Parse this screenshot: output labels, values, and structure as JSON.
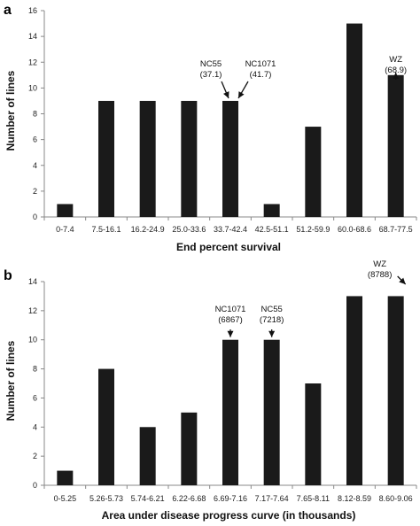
{
  "chart_data": [
    {
      "type": "bar",
      "panel_label": "a",
      "categories": [
        "0-7.4",
        "7.5-16.1",
        "16.2-24.9",
        "25.0-33.6",
        "33.7-42.4",
        "42.5-51.1",
        "51.2-59.9",
        "60.0-68.6",
        "68.7-77.5"
      ],
      "values": [
        1,
        9,
        9,
        9,
        9,
        1,
        7,
        15,
        11
      ],
      "xlabel": "End percent survival",
      "ylabel": "Number  of lines",
      "ylim": [
        0,
        16
      ],
      "yticks": [
        0,
        2,
        4,
        6,
        8,
        10,
        12,
        14,
        16
      ],
      "grid": false,
      "bar_color": "#1a1a1a",
      "annotations": [
        {
          "name": "NC55",
          "value": "(37.1)",
          "category": "33.7-42.4"
        },
        {
          "name": "NC1071",
          "value": "(41.7)",
          "category": "33.7-42.4"
        },
        {
          "name": "WZ",
          "value": "(68.9)",
          "category": "68.7-77.5"
        }
      ]
    },
    {
      "type": "bar",
      "panel_label": "b",
      "categories": [
        "0-5.25",
        "5.26-5.73",
        "5.74-6.21",
        "6.22-6.68",
        "6.69-7.16",
        "7.17-7.64",
        "7.65-8.11",
        "8.12-8.59",
        "8.60-9.06"
      ],
      "values": [
        1,
        8,
        4,
        5,
        10,
        10,
        7,
        13,
        13
      ],
      "xlabel": "Area under disease progress curve (in thousands)",
      "ylabel": "Number of lines",
      "ylim": [
        0,
        14
      ],
      "yticks": [
        0,
        2,
        4,
        6,
        8,
        10,
        12,
        14
      ],
      "grid": false,
      "bar_color": "#1a1a1a",
      "annotations": [
        {
          "name": "NC1071",
          "value": "(6867)",
          "category": "6.69-7.16"
        },
        {
          "name": "NC55",
          "value": "(7218)",
          "category": "7.17-7.64"
        },
        {
          "name": "WZ",
          "value": "(8788)",
          "category": "8.60-9.06"
        }
      ]
    }
  ]
}
